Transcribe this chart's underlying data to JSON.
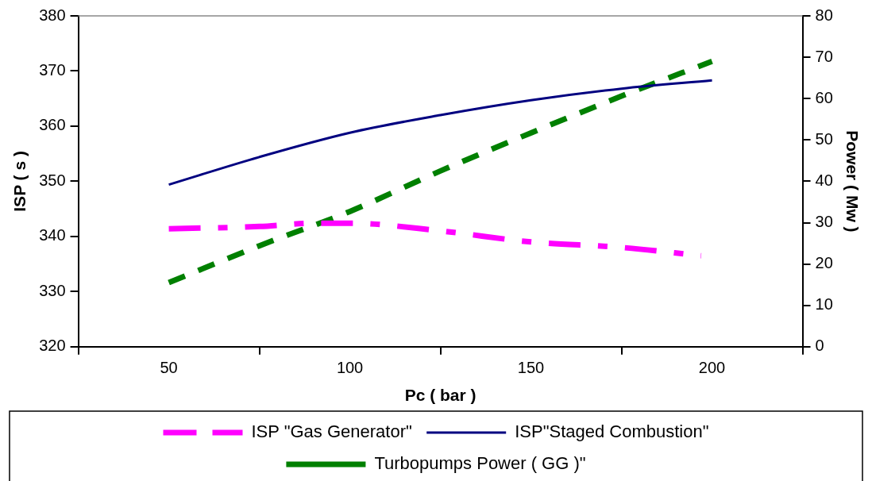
{
  "chart_data": {
    "type": "line",
    "xlabel": "Pc ( bar )",
    "ylabel": "ISP ( s )",
    "y2label": "Power ( Mw )",
    "xlim": [
      25,
      225
    ],
    "xticks": [
      {
        "value": 25,
        "label": null
      },
      50,
      {
        "value": 75,
        "label": null
      },
      100,
      {
        "value": 125,
        "label": null
      },
      150,
      {
        "value": 175,
        "label": null
      },
      200,
      {
        "value": 225,
        "label": null
      }
    ],
    "ylim": [
      320,
      380
    ],
    "yticks": [
      320,
      330,
      340,
      350,
      360,
      370,
      380
    ],
    "y2lim": [
      0,
      80
    ],
    "y2ticks": [
      0,
      10,
      20,
      30,
      40,
      50,
      60,
      70,
      80
    ],
    "grid": false,
    "legend": "bottom",
    "marker": "none",
    "series": [
      {
        "name": "ISP \"Gas Generator\"",
        "color": "#ff00ff",
        "line_style": "dashdot",
        "x": [
          50,
          75,
          90,
          100,
          125,
          150,
          175,
          197
        ],
        "values": [
          341.4,
          341.8,
          342.4,
          342.4,
          341,
          339,
          338,
          336.5
        ]
      },
      {
        "name": "ISP\"Staged Combustion\"",
        "color": "#000080",
        "line_style": "solid",
        "x": [
          50,
          75,
          100,
          125,
          150,
          175,
          200
        ],
        "values": [
          349.4,
          354.4,
          358.8,
          362,
          364.7,
          366.8,
          368.3
        ]
      },
      {
        "name": "Turbopumps Power ( GG )\"",
        "color": "#008000",
        "line_style": "dashed",
        "axis": "y2",
        "x": [
          50,
          75,
          100,
          125,
          150,
          175,
          200
        ],
        "values": [
          15.5,
          24.4,
          32.7,
          42.5,
          51.7,
          60.6,
          69
        ]
      }
    ]
  }
}
